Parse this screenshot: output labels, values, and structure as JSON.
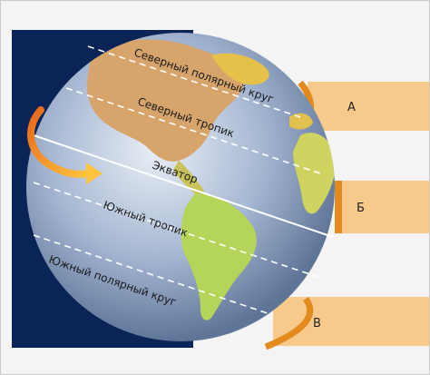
{
  "zones": [
    {
      "id": "A",
      "label": "А"
    },
    {
      "id": "B",
      "label": "Б"
    },
    {
      "id": "V",
      "label": "В"
    }
  ],
  "belts": {
    "north_polar_circle": "Северный полярный круг",
    "north_tropic": "Северный тропик",
    "equator": "Экватор",
    "south_tropic": "Южный тропик",
    "south_polar_circle": "Южный полярный круг"
  },
  "colors": {
    "space": "#0b2457",
    "ocean": "#8fa6c7",
    "land_north": "#d7a46b",
    "land_south": "#b5d45a",
    "zone_band": "#f7c98a",
    "zone_bracket": "#e38a1e",
    "rotation_arrow": "#f39a1d"
  }
}
